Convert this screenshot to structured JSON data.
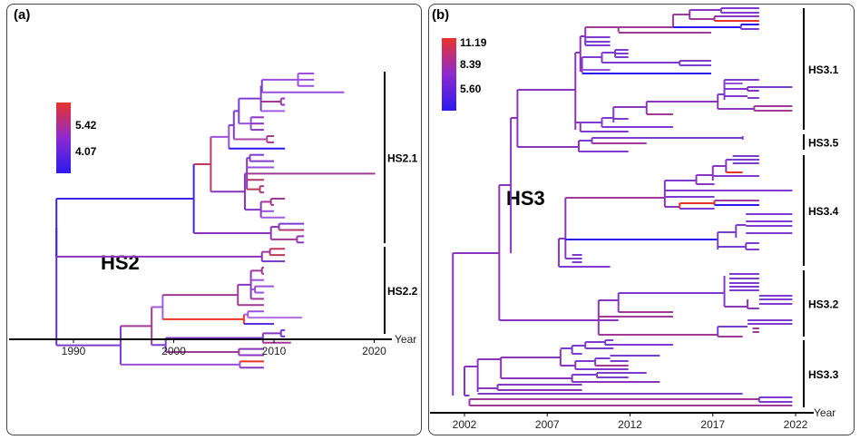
{
  "chart_data": [
    {
      "type": "tree",
      "panel_label": "(a)",
      "title": "HS2",
      "xlabel": "Year",
      "xlim": [
        1984.5,
        2022.7
      ],
      "x_ticks": [
        1990,
        2000,
        2010,
        2020
      ],
      "colorbar": {
        "ticks": [
          "5.42",
          "4.07"
        ],
        "tick_values": [
          5.42,
          4.07
        ],
        "range": [
          3.0,
          6.3
        ],
        "colors": [
          "#2a1af0",
          "#8e2ad0",
          "#e8332a"
        ]
      },
      "clades": [
        {
          "name": "HS2.1",
          "span": [
            1,
            24
          ]
        },
        {
          "name": "HS2.2",
          "span": [
            25,
            37
          ]
        }
      ],
      "tree": {
        "t": 1988.3,
        "c": "#3a25e8",
        "ch": [
          {
            "t": 2002.0,
            "c": "#3a25e8",
            "ch": [
              {
                "t": 2003.7,
                "c": "#c0385a",
                "ch": [
                  {
                    "t": 2005.5,
                    "c": "#9a50dc",
                    "ch": [
                      {
                        "t": 2006.0,
                        "c": "#7d3bd0",
                        "ch": [
                          {
                            "t": 2006.5,
                            "c": "#7d3bd0",
                            "ch": [
                              {
                                "t": 2008.7,
                                "c": "#7d3bd0",
                                "ch": [
                                  {
                                    "t": 2008.8,
                                    "c": "#7d3bd0",
                                    "ch": [
                                      {
                                        "t": 2012.4,
                                        "c": "#9a50dc",
                                        "ch": [
                                          {
                                            "t": 2014.0,
                                            "c": "#9a50dc"
                                          },
                                          {
                                            "t": 2014.0,
                                            "c": "#9a50dc"
                                          },
                                          {
                                            "t": 2014.0,
                                            "c": "#9a50dc"
                                          }
                                        ]
                                      },
                                      {
                                        "t": 2017.0,
                                        "c": "#9a50dc"
                                      }
                                    ]
                                  },
                                  {
                                    "t": 2010.7,
                                    "c": "#a03a96",
                                    "ch": [
                                      {
                                        "t": 2011.1,
                                        "c": "#8a35c0"
                                      },
                                      {
                                        "t": 2011.1,
                                        "c": "#8a35c0"
                                      }
                                    ]
                                  },
                                  {
                                    "t": 2011.1,
                                    "c": "#a25be0"
                                  }
                                ]
                              },
                              {
                                "t": 2007.7,
                                "c": "#9a50dc",
                                "ch": [
                                  {
                                    "t": 2009.0,
                                    "c": "#8a35c0"
                                  },
                                  {
                                    "t": 2009.0,
                                    "c": "#8a35c0"
                                  },
                                  {
                                    "t": 2009.0,
                                    "c": "#8a35c0"
                                  }
                                ]
                              }
                            ]
                          },
                          {
                            "t": 2009.3,
                            "c": "#b04aa8",
                            "ch": [
                              {
                                "t": 2010.0,
                                "c": "#a03a96"
                              },
                              {
                                "t": 2010.0,
                                "c": "#a03a96"
                              }
                            ]
                          }
                        ]
                      },
                      {
                        "t": 2011.1,
                        "c": "#2a1af0"
                      }
                    ]
                  },
                  {
                    "t": 2007.1,
                    "c": "#8a35c0",
                    "ch": [
                      {
                        "t": 2007.3,
                        "c": "#8a35c0",
                        "ch": [
                          {
                            "t": 2007.6,
                            "c": "#7d3bd0",
                            "ch": [
                              {
                                "t": 2009.0,
                                "c": "#7d3bd0"
                              },
                              {
                                "t": 2010.0,
                                "c": "#7d3bd0"
                              }
                            ]
                          },
                          {
                            "t": 2010.0,
                            "c": "#9a50dc"
                          },
                          {
                            "t": 2020.1,
                            "c": "#a03a96"
                          },
                          {
                            "t": 2009.0,
                            "c": "#b0356a"
                          },
                          {
                            "t": 2008.6,
                            "c": "#c0385a",
                            "ch": [
                              {
                                "t": 2009.0,
                                "c": "#a03a96"
                              },
                              {
                                "t": 2009.0,
                                "c": "#a03a96"
                              }
                            ]
                          }
                        ]
                      },
                      {
                        "t": 2008.7,
                        "c": "#8a35c0",
                        "ch": [
                          {
                            "t": 2009.7,
                            "c": "#a03a96",
                            "ch": [
                              {
                                "t": 2011.1,
                                "c": "#a03a96"
                              },
                              {
                                "t": 2010.0,
                                "c": "#a03a96"
                              }
                            ]
                          },
                          {
                            "t": 2010.0,
                            "c": "#9a50dc"
                          },
                          {
                            "t": 2011.1,
                            "c": "#a25be0"
                          }
                        ]
                      }
                    ]
                  }
                ]
              },
              {
                "t": 2009.7,
                "c": "#8a35c0",
                "ch": [
                  {
                    "t": 2010.5,
                    "c": "#8a35c0",
                    "ch": [
                      {
                        "t": 2013.0,
                        "c": "#7d3bd0"
                      },
                      {
                        "t": 2013.0,
                        "c": "#b0356a"
                      }
                    ]
                  },
                  {
                    "t": 2012.3,
                    "c": "#a03a96",
                    "ch": [
                      {
                        "t": 2013.0,
                        "c": "#8a35c0"
                      },
                      {
                        "t": 2013.0,
                        "c": "#8a35c0"
                      }
                    ]
                  }
                ]
              }
            ]
          },
          {
            "t": 2008.8,
            "c": "#8a35c0",
            "ch": [
              {
                "t": 2009.6,
                "c": "#a03a96",
                "ch": [
                  {
                    "t": 2011.1,
                    "c": "#c0385a"
                  },
                  {
                    "t": 2011.1,
                    "c": "#c0385a"
                  }
                ]
              },
              {
                "t": 2011.1,
                "c": "#7d3bd0"
              }
            ]
          }
        ]
      },
      "tree2": {
        "t": 1994.7,
        "c": "#7d3bd0",
        "ch": [
          {
            "t": 1997.8,
            "c": "#a03a96",
            "ch": [
              {
                "t": 1998.9,
                "c": "#a25be0",
                "ch": [
                  {
                    "t": 2006.4,
                    "c": "#a03a96",
                    "ch": [
                      {
                        "t": 2007.7,
                        "c": "#8a35c0",
                        "ch": [
                          {
                            "t": 2008.8,
                            "c": "#a03a96",
                            "ch": [
                              {
                                "t": 2009.0,
                                "c": "#a03a96"
                              },
                              {
                                "t": 2009.0,
                                "c": "#a03a96"
                              }
                            ]
                          },
                          {
                            "t": 2009.0,
                            "c": "#9a50dc"
                          },
                          {
                            "t": 2008.1,
                            "c": "#9a50dc",
                            "ch": [
                              {
                                "t": 2010.0,
                                "c": "#9a50dc"
                              },
                              {
                                "t": 2009.0,
                                "c": "#9a50dc"
                              }
                            ]
                          },
                          {
                            "t": 2009.0,
                            "c": "#a03a96"
                          }
                        ]
                      },
                      {
                        "t": 2009.0,
                        "c": "#a03a96"
                      }
                    ]
                  },
                  {
                    "t": 2007.0,
                    "c": "#e8332a",
                    "ch": [
                      {
                        "t": 2007.4,
                        "c": "#a25be0",
                        "ch": [
                          {
                            "t": 2009.0,
                            "c": "#9a50dc"
                          },
                          {
                            "t": 2012.8,
                            "c": "#b070e0"
                          }
                        ]
                      },
                      {
                        "t": 2010.0,
                        "c": "#5a30e0"
                      }
                    ]
                  }
                ]
              },
              {
                "t": 1999.2,
                "c": "#7d3bd0",
                "ch": [
                  {
                    "t": 2008.9,
                    "c": "#7d3bd0",
                    "ch": [
                      {
                        "t": 2010.7,
                        "c": "#8a35c0",
                        "ch": [
                          {
                            "t": 2011.1,
                            "c": "#6a30d8"
                          },
                          {
                            "t": 2011.1,
                            "c": "#6a30d8"
                          }
                        ]
                      },
                      {
                        "t": 2011.7,
                        "c": "#a03a96"
                      }
                    ]
                  },
                  {
                    "t": 2006.5,
                    "c": "#a03a96",
                    "ch": [
                      {
                        "t": 2009.0,
                        "c": "#8a35c0"
                      },
                      {
                        "t": 2009.0,
                        "c": "#8a35c0"
                      }
                    ]
                  }
                ]
              }
            ]
          },
          {
            "t": 2006.6,
            "c": "#9a50dc",
            "ch": [
              {
                "t": 2009.0,
                "c": "#e8332a"
              },
              {
                "t": 2009.0,
                "c": "#8a35c0"
              }
            ]
          }
        ]
      }
    },
    {
      "type": "tree",
      "panel_label": "(b)",
      "title": "HS3",
      "xlabel": "Year",
      "xlim": [
        1999.4,
        2024.7
      ],
      "x_ticks": [
        2002,
        2007,
        2012,
        2017,
        2022
      ],
      "colorbar": {
        "ticks": [
          "11.19",
          "8.39",
          "5.60"
        ],
        "tick_values": [
          11.19,
          8.39,
          5.6
        ],
        "range": [
          3.0,
          11.8
        ],
        "colors": [
          "#2a1af0",
          "#8e2ad0",
          "#e8332a"
        ]
      },
      "clades": [
        {
          "name": "HS3.1",
          "span": [
            1,
            28
          ]
        },
        {
          "name": "HS3.5",
          "span": [
            29,
            31
          ]
        },
        {
          "name": "HS3.4",
          "span": [
            32,
            57
          ]
        },
        {
          "name": "HS3.2",
          "span": [
            58,
            73
          ]
        },
        {
          "name": "HS3.3",
          "span": [
            74,
            88
          ]
        }
      ]
    }
  ]
}
